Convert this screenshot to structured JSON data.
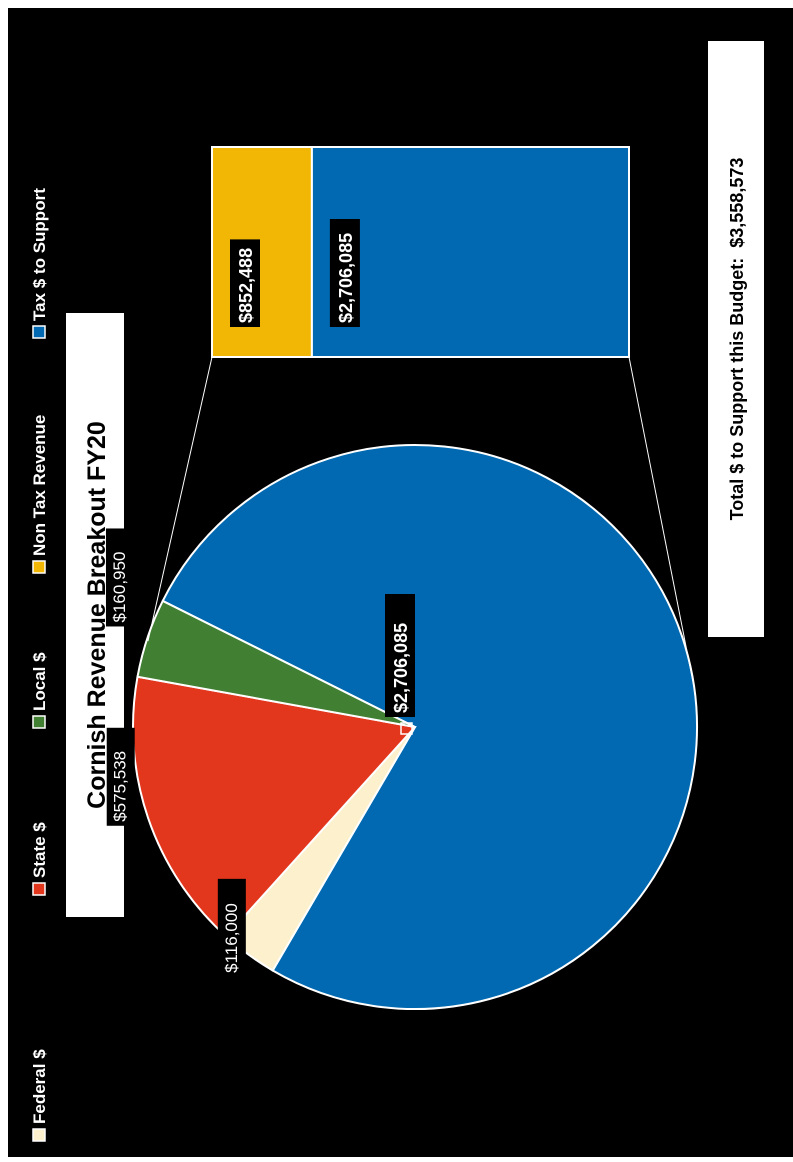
{
  "chart_data": {
    "type": "pie",
    "title": "Cornish Revenue Breakout FY20",
    "legend_position": "top",
    "legend": [
      {
        "label": "Federal $",
        "color": "#fdf0cd"
      },
      {
        "label": "State $",
        "color": "#e2361d"
      },
      {
        "label": "Local $",
        "color": "#418033"
      },
      {
        "label": "Non Tax Revenue",
        "color": "#f2b705"
      },
      {
        "label": "Tax $ to Support",
        "color": "#0069b1"
      }
    ],
    "pie": {
      "slices": [
        {
          "name": "Tax $ to Support",
          "value": 2706085,
          "label": "$2,706,085",
          "color": "#0069b1"
        },
        {
          "name": "Federal $",
          "value": 116000,
          "label": "$116,000",
          "color": "#fdf0cd"
        },
        {
          "name": "State $",
          "value": 575538,
          "label": "$575,538",
          "color": "#e2361d"
        },
        {
          "name": "Local $",
          "value": 160950,
          "label": "$160,950",
          "color": "#418033"
        }
      ]
    },
    "breakout_bar": {
      "segments": [
        {
          "name": "Non Tax Revenue",
          "value": 852488,
          "label": "$852,488",
          "color": "#f2b705"
        },
        {
          "name": "Tax $ to Support",
          "value": 2706085,
          "label": "$2,706,085",
          "color": "#0069b1"
        }
      ]
    },
    "total_text": "Total $ to Support this Budget:  $3,558,573"
  }
}
